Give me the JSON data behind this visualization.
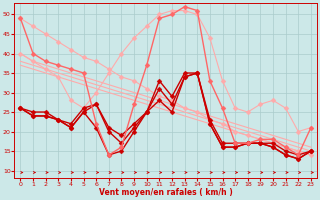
{
  "bg_color": "#cce8e8",
  "grid_color": "#aacccc",
  "xlabel": "Vent moyen/en rafales ( km/h )",
  "xlabel_color": "#cc0000",
  "tick_color": "#cc0000",
  "xlim": [
    -0.5,
    23.5
  ],
  "ylim": [
    8,
    53
  ],
  "yticks": [
    10,
    15,
    20,
    25,
    30,
    35,
    40,
    45,
    50
  ],
  "xticks": [
    0,
    1,
    2,
    3,
    4,
    5,
    6,
    7,
    8,
    9,
    10,
    11,
    12,
    13,
    14,
    15,
    16,
    17,
    18,
    19,
    20,
    21,
    22,
    23
  ],
  "series": [
    {
      "x": [
        0,
        1,
        2,
        3,
        4,
        5,
        6,
        7,
        8,
        9,
        10,
        11,
        12,
        13,
        14,
        15,
        16,
        17,
        18,
        19,
        20,
        21,
        22,
        23
      ],
      "y": [
        49,
        47,
        45,
        43,
        41,
        39,
        38,
        36,
        34,
        33,
        31,
        29,
        28,
        26,
        25,
        23,
        22,
        20,
        19,
        18,
        17,
        16,
        15,
        14
      ],
      "color": "#ffaaaa",
      "lw": 0.8,
      "marker": "D",
      "ms": 2.5,
      "zorder": 2
    },
    {
      "x": [
        0,
        1,
        2,
        3,
        4,
        5,
        6,
        7,
        8,
        9,
        10,
        11,
        12,
        13,
        14,
        15,
        16,
        17,
        18,
        19,
        20,
        21,
        22,
        23
      ],
      "y": [
        40,
        38,
        37,
        36,
        35,
        34,
        33,
        32,
        31,
        30,
        29,
        28,
        27,
        26,
        25,
        24,
        23,
        22,
        21,
        20,
        19,
        18,
        17,
        16
      ],
      "color": "#ffaaaa",
      "lw": 0.8,
      "marker": null,
      "ms": 0,
      "zorder": 2
    },
    {
      "x": [
        0,
        1,
        2,
        3,
        4,
        5,
        6,
        7,
        8,
        9,
        10,
        11,
        12,
        13,
        14,
        15,
        16,
        17,
        18,
        19,
        20,
        21,
        22,
        23
      ],
      "y": [
        38,
        37,
        36,
        35,
        34,
        33,
        32,
        31,
        30,
        29,
        28,
        27,
        26,
        25,
        24,
        23,
        22,
        21,
        20,
        19,
        18,
        17,
        16,
        15
      ],
      "color": "#ffaaaa",
      "lw": 0.8,
      "marker": null,
      "ms": 0,
      "zorder": 2
    },
    {
      "x": [
        0,
        1,
        2,
        3,
        4,
        5,
        6,
        7,
        8,
        9,
        10,
        11,
        12,
        13,
        14,
        15,
        16,
        17,
        18,
        19,
        20,
        21,
        22,
        23
      ],
      "y": [
        37,
        36,
        35,
        34,
        33,
        32,
        31,
        30,
        29,
        28,
        27,
        26,
        25,
        24,
        23,
        22,
        21,
        20,
        19,
        18,
        17,
        16,
        15,
        14
      ],
      "color": "#ffaaaa",
      "lw": 0.8,
      "marker": null,
      "ms": 0,
      "zorder": 2
    },
    {
      "x": [
        0,
        1,
        2,
        3,
        4,
        5,
        6,
        7,
        8,
        9,
        10,
        11,
        12,
        13,
        14,
        15,
        16,
        17,
        18,
        19,
        20,
        21,
        22,
        23
      ],
      "y": [
        40,
        38,
        36,
        34,
        28,
        26,
        30,
        35,
        40,
        44,
        47,
        50,
        51,
        51,
        50,
        44,
        33,
        26,
        25,
        27,
        28,
        26,
        20,
        21
      ],
      "color": "#ffaaaa",
      "lw": 0.8,
      "marker": "D",
      "ms": 2.5,
      "zorder": 2
    },
    {
      "x": [
        0,
        1,
        2,
        3,
        4,
        5,
        6,
        7,
        8,
        9,
        10,
        11,
        12,
        13,
        14,
        15,
        16,
        17,
        18,
        19,
        20,
        21,
        22,
        23
      ],
      "y": [
        26,
        25,
        25,
        23,
        22,
        26,
        27,
        21,
        19,
        22,
        25,
        33,
        29,
        35,
        35,
        23,
        17,
        17,
        17,
        17,
        17,
        15,
        14,
        15
      ],
      "color": "#cc0000",
      "lw": 1.0,
      "marker": "D",
      "ms": 2.5,
      "zorder": 3
    },
    {
      "x": [
        0,
        1,
        2,
        3,
        4,
        5,
        6,
        7,
        8,
        9,
        10,
        11,
        12,
        13,
        14,
        15,
        16,
        17,
        18,
        19,
        20,
        21,
        22,
        23
      ],
      "y": [
        26,
        24,
        24,
        23,
        21,
        25,
        27,
        20,
        17,
        21,
        25,
        31,
        27,
        34,
        35,
        22,
        16,
        16,
        17,
        17,
        16,
        14,
        13,
        15
      ],
      "color": "#cc0000",
      "lw": 1.0,
      "marker": "D",
      "ms": 2.5,
      "zorder": 3
    },
    {
      "x": [
        0,
        1,
        2,
        3,
        4,
        5,
        6,
        7,
        8,
        9,
        10,
        11,
        12,
        13,
        14,
        15,
        16,
        17,
        18,
        19,
        20,
        21,
        22,
        23
      ],
      "y": [
        26,
        24,
        24,
        23,
        21,
        25,
        21,
        14,
        15,
        20,
        25,
        28,
        25,
        34,
        35,
        22,
        16,
        16,
        17,
        17,
        16,
        14,
        13,
        15
      ],
      "color": "#cc0000",
      "lw": 1.0,
      "marker": "D",
      "ms": 2.5,
      "zorder": 3
    },
    {
      "x": [
        0,
        1,
        2,
        3,
        4,
        5,
        6,
        7,
        8,
        9,
        10,
        11,
        12,
        13,
        14,
        15,
        16,
        17,
        18,
        19,
        20,
        21,
        22,
        23
      ],
      "y": [
        49,
        40,
        38,
        37,
        36,
        35,
        22,
        14,
        16,
        27,
        37,
        49,
        50,
        52,
        51,
        33,
        26,
        17,
        17,
        18,
        18,
        16,
        14,
        21
      ],
      "color": "#ff6666",
      "lw": 1.0,
      "marker": "D",
      "ms": 2.5,
      "zorder": 3
    }
  ],
  "arrow_color": "#cc0000"
}
